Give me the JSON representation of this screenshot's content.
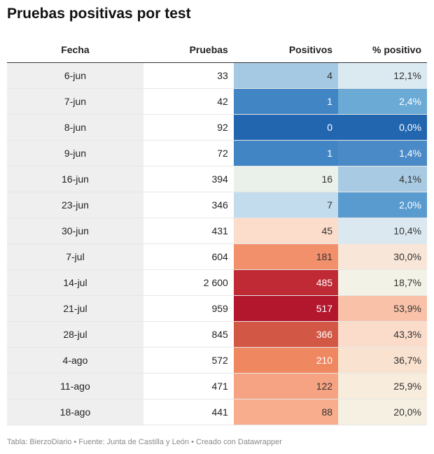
{
  "title": "Pruebas positivas por test",
  "footer": "Tabla: BierzoDiario • Fuente: Junta de Castilla y León • Creado con Datawrapper",
  "chart_data": {
    "type": "table",
    "columns": [
      "Fecha",
      "Pruebas",
      "Positivos",
      "% positivo"
    ],
    "rows": [
      {
        "fecha": "6-jun",
        "pruebas": "33",
        "positivos": "4",
        "pct": "12,1%",
        "pos_color": "#a6c9e3",
        "pos_text": "#333333",
        "pct_color": "#dbe9f1",
        "pct_text": "#333333"
      },
      {
        "fecha": "7-jun",
        "pruebas": "42",
        "positivos": "1",
        "pct": "2,4%",
        "pos_color": "#4285c4",
        "pos_text": "#ffffff",
        "pct_color": "#6aaad5",
        "pct_text": "#ffffff"
      },
      {
        "fecha": "8-jun",
        "pruebas": "92",
        "positivos": "0",
        "pct": "0,0%",
        "pos_color": "#2266b0",
        "pos_text": "#ffffff",
        "pct_color": "#2266b0",
        "pct_text": "#ffffff"
      },
      {
        "fecha": "9-jun",
        "pruebas": "72",
        "positivos": "1",
        "pct": "1,4%",
        "pos_color": "#4285c4",
        "pos_text": "#ffffff",
        "pct_color": "#4a8ac6",
        "pct_text": "#ffffff"
      },
      {
        "fecha": "16-jun",
        "pruebas": "394",
        "positivos": "16",
        "pct": "4,1%",
        "pos_color": "#eaf0ea",
        "pos_text": "#333333",
        "pct_color": "#a8cbe3",
        "pct_text": "#333333"
      },
      {
        "fecha": "23-jun",
        "pruebas": "346",
        "positivos": "7",
        "pct": "2,0%",
        "pos_color": "#c2dcee",
        "pos_text": "#333333",
        "pct_color": "#5a9bcf",
        "pct_text": "#ffffff"
      },
      {
        "fecha": "30-jun",
        "pruebas": "431",
        "positivos": "45",
        "pct": "10,4%",
        "pos_color": "#fcdccb",
        "pos_text": "#333333",
        "pct_color": "#dbe8f0",
        "pct_text": "#333333"
      },
      {
        "fecha": "7-jul",
        "pruebas": "604",
        "positivos": "181",
        "pct": "30,0%",
        "pos_color": "#f3906c",
        "pos_text": "#333333",
        "pct_color": "#f8e6d8",
        "pct_text": "#333333"
      },
      {
        "fecha": "14-jul",
        "pruebas": "2 600",
        "positivos": "485",
        "pct": "18,7%",
        "pos_color": "#bf2a34",
        "pos_text": "#ffffff",
        "pct_color": "#f2f2e6",
        "pct_text": "#333333"
      },
      {
        "fecha": "21-jul",
        "pruebas": "959",
        "positivos": "517",
        "pct": "53,9%",
        "pos_color": "#b3172e",
        "pos_text": "#ffffff",
        "pct_color": "#f9c2a8",
        "pct_text": "#333333"
      },
      {
        "fecha": "28-jul",
        "pruebas": "845",
        "positivos": "366",
        "pct": "43,3%",
        "pos_color": "#d25745",
        "pos_text": "#ffffff",
        "pct_color": "#fbdcca",
        "pct_text": "#333333"
      },
      {
        "fecha": "4-ago",
        "pruebas": "572",
        "positivos": "210",
        "pct": "36,7%",
        "pos_color": "#ef8760",
        "pos_text": "#ffffff",
        "pct_color": "#f9e2cf",
        "pct_text": "#333333"
      },
      {
        "fecha": "11-ago",
        "pruebas": "471",
        "positivos": "122",
        "pct": "25,9%",
        "pos_color": "#f6a383",
        "pos_text": "#333333",
        "pct_color": "#f8ecdc",
        "pct_text": "#333333"
      },
      {
        "fecha": "18-ago",
        "pruebas": "441",
        "positivos": "88",
        "pct": "20,0%",
        "pos_color": "#f8ad8c",
        "pos_text": "#333333",
        "pct_color": "#f6f0e2",
        "pct_text": "#333333"
      }
    ]
  }
}
